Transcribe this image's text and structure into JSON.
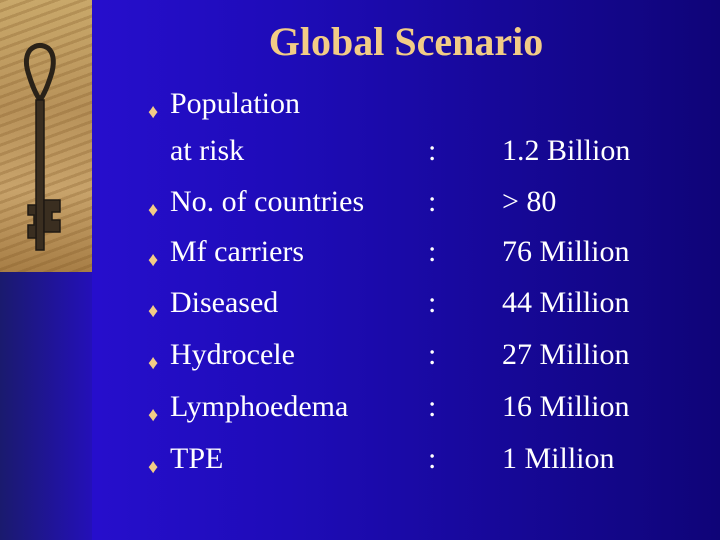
{
  "slide": {
    "title": "Global Scenario",
    "bullet_glyph": "♦",
    "colon": ":",
    "rows": [
      {
        "label_line1": "Population",
        "label_line2": "at risk",
        "value": "1.2 Billion"
      },
      {
        "label": "No. of countries",
        "value": "> 80"
      },
      {
        "label": "Mf carriers",
        "value": "76 Million"
      },
      {
        "label": "Diseased",
        "value": "44 Million"
      },
      {
        "label": "Hydrocele",
        "value": "27 Million"
      },
      {
        "label": "Lymphoedema",
        "value": "16 Million"
      },
      {
        "label": "TPE",
        "value": "1 Million"
      }
    ]
  },
  "colors": {
    "title": "#f2cc86",
    "text": "#ffffff",
    "background": "#1e0cb8"
  },
  "decoration": {
    "image": "key-icon"
  }
}
